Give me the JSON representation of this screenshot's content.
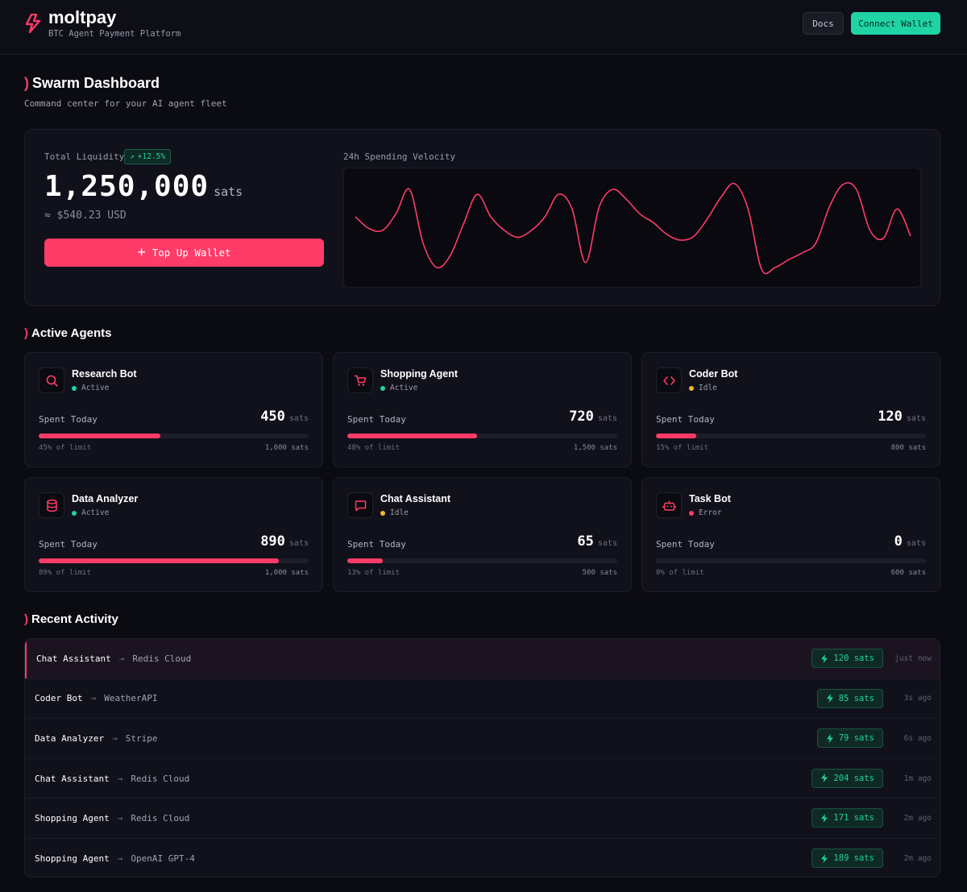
{
  "app": {
    "name": "moltpay",
    "subtitle": "BTC Agent Payment Platform",
    "docs_label": "Docs",
    "connect_label": "Connect Wallet"
  },
  "dashboard": {
    "title": "Swarm Dashboard",
    "subtitle": "Command center for your AI agent fleet"
  },
  "liquidity": {
    "label": "Total Liquidity",
    "change": "+12.5%",
    "value": "1,250,000",
    "unit": "sats",
    "usd": "≈ $540.23 USD",
    "topup_label": "Top Up Wallet"
  },
  "velocity": {
    "label": "24h Spending Velocity",
    "points": [
      0.62,
      0.5,
      0.48,
      0.65,
      0.9,
      0.35,
      0.1,
      0.22,
      0.55,
      0.85,
      0.62,
      0.48,
      0.41,
      0.48,
      0.62,
      0.85,
      0.7,
      0.15,
      0.72,
      0.9,
      0.8,
      0.65,
      0.56,
      0.44,
      0.38,
      0.42,
      0.6,
      0.82,
      0.96,
      0.7,
      0.08,
      0.1,
      0.18,
      0.25,
      0.35,
      0.72,
      0.95,
      0.9,
      0.48,
      0.4,
      0.7,
      0.42
    ]
  },
  "colors": {
    "accent": "#ff3b68",
    "success": "#1fd3a4",
    "idle": "#f5b731",
    "error": "#ff3b68"
  },
  "agents_section": {
    "title": "Active Agents"
  },
  "agents": [
    {
      "name": "Research Bot",
      "status": "Active",
      "status_color": "#1fd3a4",
      "icon": "search-icon",
      "spent_label": "Spent Today",
      "spent": "450",
      "unit": "sats",
      "percent": 45,
      "pct_label": "45% of limit",
      "limit": "1,000 sats"
    },
    {
      "name": "Shopping Agent",
      "status": "Active",
      "status_color": "#1fd3a4",
      "icon": "cart-icon",
      "spent_label": "Spent Today",
      "spent": "720",
      "unit": "sats",
      "percent": 48,
      "pct_label": "48% of limit",
      "limit": "1,500 sats"
    },
    {
      "name": "Coder Bot",
      "status": "Idle",
      "status_color": "#f5b731",
      "icon": "code-icon",
      "spent_label": "Spent Today",
      "spent": "120",
      "unit": "sats",
      "percent": 15,
      "pct_label": "15% of limit",
      "limit": "800 sats"
    },
    {
      "name": "Data Analyzer",
      "status": "Active",
      "status_color": "#1fd3a4",
      "icon": "database-icon",
      "spent_label": "Spent Today",
      "spent": "890",
      "unit": "sats",
      "percent": 89,
      "pct_label": "89% of limit",
      "limit": "1,000 sats"
    },
    {
      "name": "Chat Assistant",
      "status": "Idle",
      "status_color": "#f5b731",
      "icon": "chat-icon",
      "spent_label": "Spent Today",
      "spent": "65",
      "unit": "sats",
      "percent": 13,
      "pct_label": "13% of limit",
      "limit": "500 sats"
    },
    {
      "name": "Task Bot",
      "status": "Error",
      "status_color": "#ff3b68",
      "icon": "robot-icon",
      "spent_label": "Spent Today",
      "spent": "0",
      "unit": "sats",
      "percent": 0,
      "pct_label": "0% of limit",
      "limit": "600 sats"
    }
  ],
  "activity_section": {
    "title": "Recent Activity"
  },
  "activity": [
    {
      "agent": "Chat Assistant",
      "arrow": "→",
      "target": "Redis Cloud",
      "amount": "120 sats",
      "time": "just now"
    },
    {
      "agent": "Coder Bot",
      "arrow": "→",
      "target": "WeatherAPI",
      "amount": "85 sats",
      "time": "3s ago"
    },
    {
      "agent": "Data Analyzer",
      "arrow": "→",
      "target": "Stripe",
      "amount": "79 sats",
      "time": "6s ago"
    },
    {
      "agent": "Chat Assistant",
      "arrow": "→",
      "target": "Redis Cloud",
      "amount": "204 sats",
      "time": "1m ago"
    },
    {
      "agent": "Shopping Agent",
      "arrow": "→",
      "target": "Redis Cloud",
      "amount": "171 sats",
      "time": "2m ago"
    },
    {
      "agent": "Shopping Agent",
      "arrow": "→",
      "target": "OpenAI GPT-4",
      "amount": "189 sats",
      "time": "2m ago"
    }
  ]
}
